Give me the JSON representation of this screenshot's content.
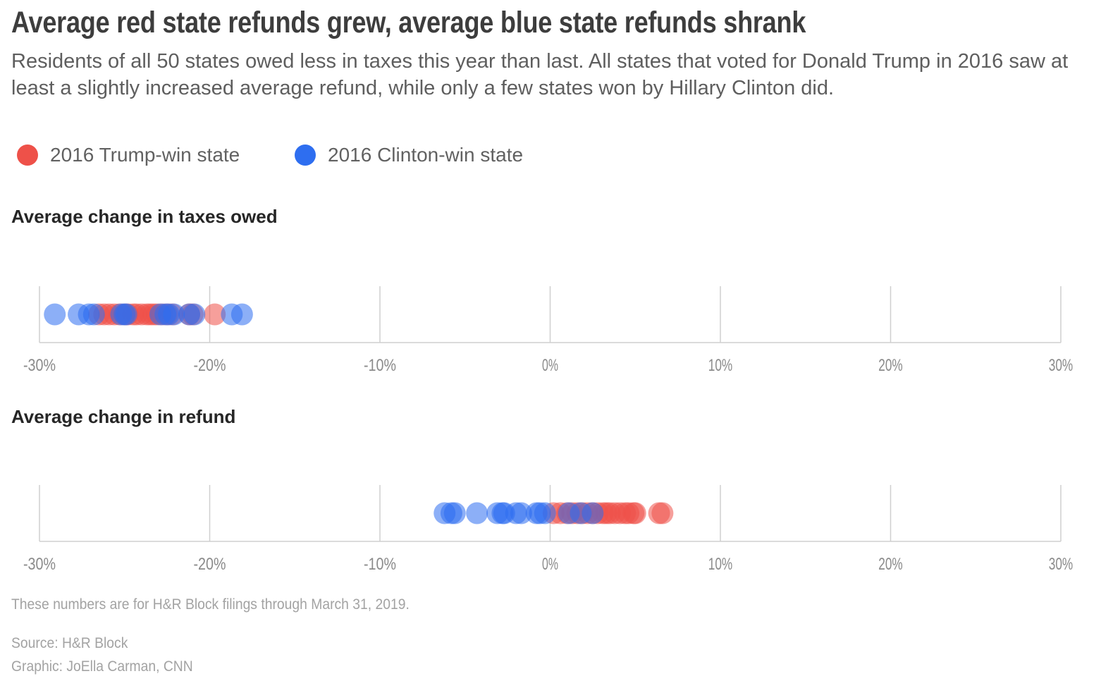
{
  "title": "Average red state refunds grew, average blue state refunds shrank",
  "subtitle": "Residents of all 50 states owed less in taxes this year than last. All states that voted for Donald Trump in 2016 saw at least a slightly increased average refund, while only a few states won by Hillary Clinton did.",
  "colors": {
    "trump": "#ee5149",
    "clinton": "#2e6ef0",
    "axis": "#cfcfcf",
    "tick_text": "#8a8a8a"
  },
  "legend": [
    {
      "label": "2016 Trump-win state",
      "color": "#ee5149"
    },
    {
      "label": "2016 Clinton-win state",
      "color": "#2e6ef0"
    }
  ],
  "chart_data": [
    {
      "type": "scatter",
      "title": "Average change in taxes owed",
      "xlim": [
        -30,
        30
      ],
      "xticks": [
        -30,
        -20,
        -10,
        0,
        10,
        20,
        30
      ],
      "tick_labels": [
        "-30%",
        "-20%",
        "-10%",
        "0%",
        "10%",
        "20%",
        "30%"
      ],
      "grid": true,
      "series": [
        {
          "name": "2016 Trump-win state",
          "values": [
            -26.5,
            -26.2,
            -25.9,
            -25.6,
            -25.3,
            -25.0,
            -24.8,
            -24.5,
            -24.3,
            -24.0,
            -23.7,
            -23.5,
            -23.3,
            -23.1,
            -22.8,
            -22.5,
            -22.2,
            -21.2,
            -21.0,
            -19.7
          ]
        },
        {
          "name": "2016 Clinton-win state",
          "values": [
            -29.1,
            -27.7,
            -27.1,
            -26.8,
            -25.2,
            -25.0,
            -24.9,
            -22.9,
            -22.6,
            -22.4,
            -22.1,
            -21.2,
            -20.9,
            -18.7,
            -18.1
          ]
        }
      ]
    },
    {
      "type": "scatter",
      "title": "Average change in refund",
      "xlim": [
        -30,
        30
      ],
      "xticks": [
        -30,
        -20,
        -10,
        0,
        10,
        20,
        30
      ],
      "tick_labels": [
        "-30%",
        "-20%",
        "-10%",
        "0%",
        "10%",
        "20%",
        "30%"
      ],
      "grid": true,
      "series": [
        {
          "name": "2016 Trump-win state",
          "values": [
            0.2,
            0.6,
            1.0,
            1.3,
            1.6,
            1.9,
            2.2,
            2.5,
            2.8,
            3.1,
            3.3,
            3.5,
            3.8,
            4.1,
            4.4,
            4.6,
            4.9,
            5.0,
            6.4,
            6.6
          ]
        },
        {
          "name": "2016 Clinton-win state",
          "values": [
            -6.2,
            -5.8,
            -5.6,
            -4.3,
            -3.1,
            -2.8,
            -2.7,
            -2.0,
            -1.7,
            -0.8,
            -0.6,
            -0.3,
            1.1,
            1.8,
            2.5
          ]
        }
      ]
    }
  ],
  "note": "These numbers are for H&R Block filings through March 31, 2019.",
  "source": "Source: H&R Block",
  "credit": "Graphic: JoElla Carman, CNN"
}
